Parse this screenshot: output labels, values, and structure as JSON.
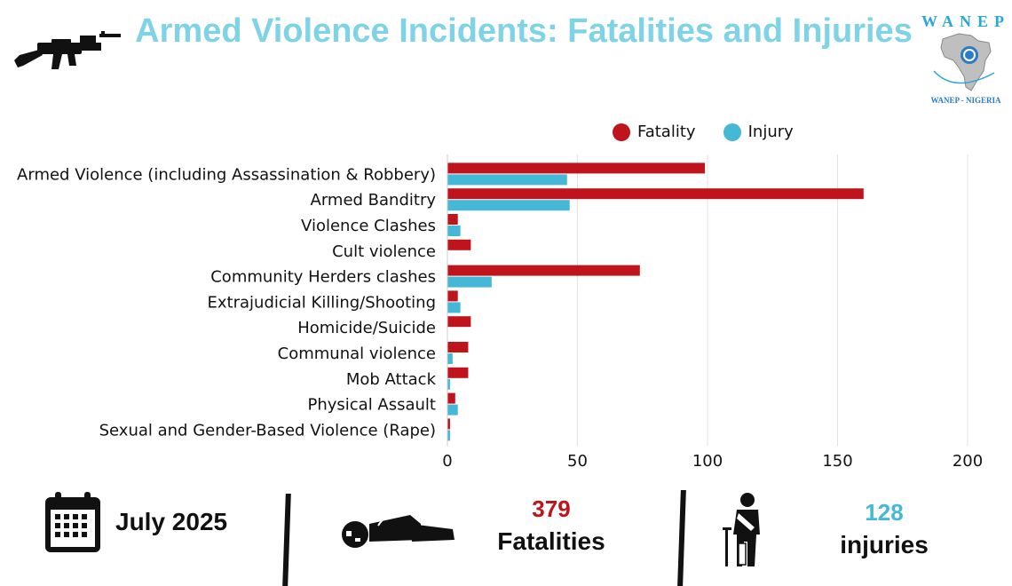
{
  "header": {
    "title": "Armed Violence Incidents: Fatalities and Injuries"
  },
  "logo": {
    "top_text": "WANEP",
    "bottom_text": "WANEP - NIGERIA"
  },
  "colors": {
    "fatality": "#c0141c",
    "injury": "#45b8d8",
    "title": "#7fd3e6",
    "grid": "#e3e3e3"
  },
  "chart_data": {
    "type": "bar",
    "orientation": "horizontal",
    "categories": [
      "Armed Violence (including Assassination & Robbery)",
      "Armed Banditry",
      "Violence Clashes",
      "Cult violence",
      "Community Herders clashes",
      "Extrajudicial Killing/Shooting",
      "Homicide/Suicide",
      "Communal violence",
      "Mob Attack",
      "Physical Assault",
      "Sexual and Gender-Based Violence (Rape)"
    ],
    "series": [
      {
        "name": "Fatality",
        "values": [
          99,
          160,
          4,
          9,
          74,
          4,
          9,
          8,
          8,
          3,
          1
        ]
      },
      {
        "name": "Injury",
        "values": [
          46,
          47,
          5,
          0,
          17,
          5,
          0,
          2,
          1,
          4,
          1
        ]
      }
    ],
    "xlim": [
      0,
      200
    ],
    "xticks": [
      0,
      50,
      100,
      150,
      200
    ],
    "grid": true,
    "legend": "top-right"
  },
  "footer": {
    "date": "July 2025",
    "fatalities_value": "379",
    "fatalities_label": "Fatalities",
    "injuries_value": "128",
    "injuries_label": "injuries"
  },
  "icons": [
    "rifle-icon",
    "calendar-icon",
    "lying-person-icon",
    "injured-person-icon",
    "wanep-logo"
  ]
}
